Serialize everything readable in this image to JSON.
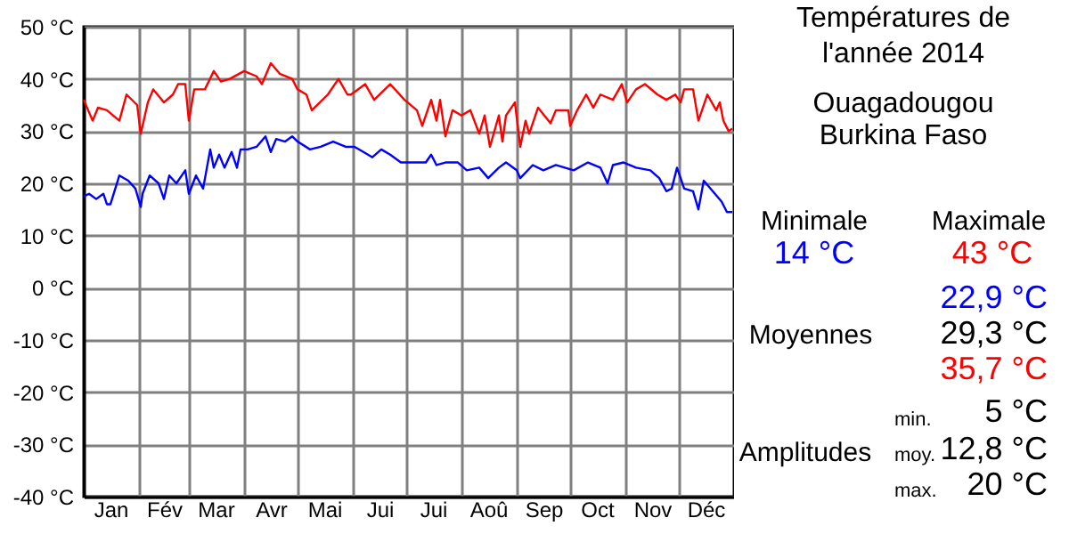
{
  "chart_data": [
    {
      "type": "line",
      "xlim": [
        "2014-01-01",
        "2015-01-01"
      ],
      "ylim": [
        -40,
        50
      ],
      "xticks": [
        {
          "value": "2014-01-16",
          "label": "Jan"
        },
        {
          "value": "2014-02-01",
          "label": null
        },
        {
          "value": "2014-02-15",
          "label": "Fév"
        },
        {
          "value": "2014-03-01",
          "label": null
        },
        {
          "value": "2014-03-16",
          "label": "Mar"
        },
        {
          "value": "2014-04-01",
          "label": null
        },
        {
          "value": "2014-04-16",
          "label": "Avr"
        },
        {
          "value": "2014-05-01",
          "label": null
        },
        {
          "value": "2014-05-16",
          "label": "Mai"
        },
        {
          "value": "2014-06-01",
          "label": null
        },
        {
          "value": "2014-06-16",
          "label": "Jui"
        },
        {
          "value": "2014-07-01",
          "label": null
        },
        {
          "value": "2014-07-16",
          "label": "Jui"
        },
        {
          "value": "2014-08-01",
          "label": null
        },
        {
          "value": "2014-08-16",
          "label": "Aoû"
        },
        {
          "value": "2014-09-01",
          "label": null
        },
        {
          "value": "2014-09-16",
          "label": "Sep"
        },
        {
          "value": "2014-10-01",
          "label": null
        },
        {
          "value": "2014-10-16",
          "label": "Oct"
        },
        {
          "value": "2014-11-01",
          "label": null
        },
        {
          "value": "2014-11-16",
          "label": "Nov"
        },
        {
          "value": "2014-12-01",
          "label": null
        },
        {
          "value": "2014-12-16",
          "label": "Déc"
        }
      ],
      "yticks": [
        {
          "value": -40,
          "label": "-40 °C"
        },
        {
          "value": -30,
          "label": "-30 °C"
        },
        {
          "value": -20,
          "label": "-20 °C"
        },
        {
          "value": -10,
          "label": "-10 °C"
        },
        {
          "value": 0,
          "label": "0 °C"
        },
        {
          "value": 10,
          "label": "10 °C"
        },
        {
          "value": 20,
          "label": "20 °C"
        },
        {
          "value": 30,
          "label": "30 °C"
        },
        {
          "value": 40,
          "label": "40 °C"
        },
        {
          "value": 50,
          "label": "50 °C"
        }
      ],
      "grid": true,
      "legend": false,
      "marker": "none",
      "line_style": "solid",
      "series": [
        {
          "color": "#ff0000",
          "x": [
            "2014-01-01",
            "2014-01-06",
            "2014-01-09",
            "2014-01-14",
            "2014-01-21",
            "2014-01-25",
            "2014-01-31",
            "2014-02-02",
            "2014-02-06",
            "2014-02-09",
            "2014-02-15",
            "2014-02-20",
            "2014-02-23",
            "2014-02-27",
            "2014-03-01",
            "2014-03-04",
            "2014-03-10",
            "2014-03-15",
            "2014-03-19",
            "2014-03-24",
            "2014-04-01",
            "2014-04-08",
            "2014-04-11",
            "2014-04-16",
            "2014-04-21",
            "2014-04-28",
            "2014-05-01",
            "2014-05-06",
            "2014-05-09",
            "2014-05-18",
            "2014-05-24",
            "2014-05-29",
            "2014-05-31",
            "2014-06-08",
            "2014-06-13",
            "2014-06-22",
            "2014-06-30",
            "2014-07-07",
            "2014-07-10",
            "2014-07-15",
            "2014-07-18",
            "2014-07-20",
            "2014-07-23",
            "2014-07-27",
            "2014-08-01",
            "2014-08-06",
            "2014-08-11",
            "2014-08-14",
            "2014-08-17",
            "2014-08-22",
            "2014-08-24",
            "2014-08-26",
            "2014-08-31",
            "2014-09-03",
            "2014-09-06",
            "2014-09-08",
            "2014-09-13",
            "2014-09-20",
            "2014-09-23",
            "2014-09-30",
            "2014-10-01",
            "2014-10-05",
            "2014-10-10",
            "2014-10-14",
            "2014-10-18",
            "2014-10-25",
            "2014-10-30",
            "2014-11-02",
            "2014-11-07",
            "2014-11-12",
            "2014-11-19",
            "2014-11-24",
            "2014-11-29",
            "2014-12-02",
            "2014-12-04",
            "2014-12-09",
            "2014-12-12",
            "2014-12-17",
            "2014-12-22",
            "2014-12-24",
            "2014-12-26",
            "2014-12-29",
            "2014-12-31"
          ],
          "values": [
            36,
            32,
            34.5,
            34,
            32,
            37,
            35,
            29.5,
            35.5,
            38,
            35.5,
            37,
            39,
            39,
            32,
            38,
            38,
            41.5,
            39.5,
            40,
            41.5,
            40.5,
            39,
            43,
            41,
            40,
            38,
            37,
            34,
            37,
            40,
            37,
            37,
            39,
            36,
            39,
            36,
            34,
            31,
            36,
            32,
            36,
            29,
            34,
            33,
            34,
            29.5,
            33,
            27,
            33,
            28,
            33,
            35.5,
            27,
            32,
            29.5,
            34.5,
            31.5,
            34,
            34,
            31,
            34,
            37,
            34.5,
            37,
            36,
            39,
            35.5,
            38,
            39,
            37,
            36,
            37,
            35.5,
            38,
            38,
            32,
            37,
            34,
            35.5,
            32,
            30,
            30.5
          ]
        },
        {
          "color": "#0000ff",
          "x": [
            "2014-01-01",
            "2014-01-04",
            "2014-01-08",
            "2014-01-12",
            "2014-01-14",
            "2014-01-16",
            "2014-01-21",
            "2014-01-26",
            "2014-01-30",
            "2014-02-02",
            "2014-02-03",
            "2014-02-07",
            "2014-02-12",
            "2014-02-15",
            "2014-02-18",
            "2014-02-22",
            "2014-02-27",
            "2014-03-01",
            "2014-03-05",
            "2014-03-09",
            "2014-03-13",
            "2014-03-15",
            "2014-03-18",
            "2014-03-21",
            "2014-03-25",
            "2014-03-28",
            "2014-03-30",
            "2014-04-03",
            "2014-04-08",
            "2014-04-13",
            "2014-04-16",
            "2014-04-19",
            "2014-04-24",
            "2014-04-28",
            "2014-05-01",
            "2014-05-08",
            "2014-05-14",
            "2014-05-21",
            "2014-05-28",
            "2014-06-02",
            "2014-06-07",
            "2014-06-12",
            "2014-06-17",
            "2014-06-22",
            "2014-06-28",
            "2014-07-02",
            "2014-07-12",
            "2014-07-15",
            "2014-07-18",
            "2014-07-23",
            "2014-07-30",
            "2014-08-04",
            "2014-08-11",
            "2014-08-16",
            "2014-08-22",
            "2014-08-26",
            "2014-09-01",
            "2014-09-03",
            "2014-09-10",
            "2014-09-16",
            "2014-09-23",
            "2014-09-28",
            "2014-10-03",
            "2014-10-11",
            "2014-10-18",
            "2014-10-22",
            "2014-10-25",
            "2014-10-31",
            "2014-11-07",
            "2014-11-15",
            "2014-11-20",
            "2014-11-24",
            "2014-11-27",
            "2014-11-30",
            "2014-12-04",
            "2014-12-09",
            "2014-12-12",
            "2014-12-15",
            "2014-12-20",
            "2014-12-25",
            "2014-12-28",
            "2014-12-31"
          ],
          "values": [
            17.5,
            18,
            17,
            18,
            16,
            16,
            21.5,
            20.5,
            19,
            15.5,
            18,
            21.5,
            20,
            17,
            21.5,
            20,
            22.5,
            18,
            21.5,
            19,
            26.5,
            23,
            25.5,
            23,
            26,
            23,
            26.5,
            26.5,
            27,
            29,
            26,
            28.5,
            28,
            29,
            28,
            26.5,
            27,
            28,
            27,
            27,
            26,
            25,
            26.5,
            25.5,
            24,
            24,
            24,
            25.5,
            23.5,
            24,
            24,
            22.5,
            23,
            21,
            23,
            24,
            22.5,
            21,
            23.5,
            22.5,
            23.5,
            23,
            22.5,
            24,
            23,
            20,
            23.5,
            24,
            23,
            22.5,
            21,
            18.5,
            19,
            23,
            19,
            18.5,
            15,
            20.5,
            18.5,
            16.5,
            14.5,
            14.5
          ]
        }
      ]
    },
    {
      "type": "other",
      "title": "Températures de\nl'année 2014",
      "subtitle": "Ouagadougou\nBurkina Faso",
      "annotations": [
        "Minimale",
        "14 °C",
        "Maximale",
        "43 °C",
        "22,9 °C",
        "Moyennes",
        "29,3 °C",
        "35,7 °C",
        "min.",
        "5 °C",
        "Amplitudes",
        "moy.",
        "12,8 °C",
        "max.",
        "20 °C"
      ]
    }
  ]
}
